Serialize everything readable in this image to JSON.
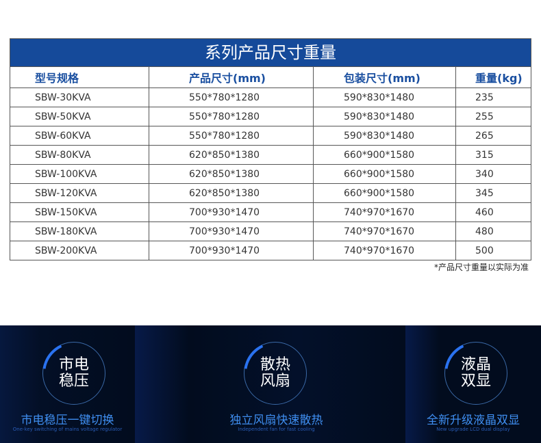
{
  "table": {
    "title": "系列产品尺寸重量",
    "headers": [
      "型号规格",
      "产品尺寸(mm)",
      "包装尺寸(mm)",
      "重量(kg)"
    ],
    "rows": [
      [
        "SBW-30KVA",
        "550*780*1280",
        "590*830*1480",
        "235"
      ],
      [
        "SBW-50KVA",
        "550*780*1280",
        "590*830*1480",
        "255"
      ],
      [
        "SBW-60KVA",
        "550*780*1280",
        "590*830*1480",
        "265"
      ],
      [
        "SBW-80KVA",
        "620*850*1380",
        "660*900*1580",
        "315"
      ],
      [
        "SBW-100KVA",
        "620*850*1380",
        "660*900*1580",
        "340"
      ],
      [
        "SBW-120KVA",
        "620*850*1380",
        "660*900*1580",
        "345"
      ],
      [
        "SBW-150KVA",
        "700*930*1470",
        "740*970*1670",
        "460"
      ],
      [
        "SBW-180KVA",
        "700*930*1470",
        "740*970*1670",
        "480"
      ],
      [
        "SBW-200KVA",
        "700*930*1470",
        "740*970*1670",
        "500"
      ]
    ],
    "note": "*产品尺寸重量以实际为准"
  },
  "features": [
    {
      "line1": "市电",
      "line2": "稳压",
      "caption": "市电稳压一键切换",
      "sub": "One-key switching of mains voltage regulator"
    },
    {
      "line1": "散热",
      "line2": "风扇",
      "caption": "独立风扇快速散热",
      "sub": "Independent fan for fast cooling"
    },
    {
      "line1": "液晶",
      "line2": "双显",
      "caption": "全新升级液晶双显",
      "sub": "New upgrade LCD dual display"
    }
  ],
  "colors": {
    "header_bg": "#154a9a",
    "accent": "#2a72f0",
    "dark_bg": "#020c1e"
  }
}
